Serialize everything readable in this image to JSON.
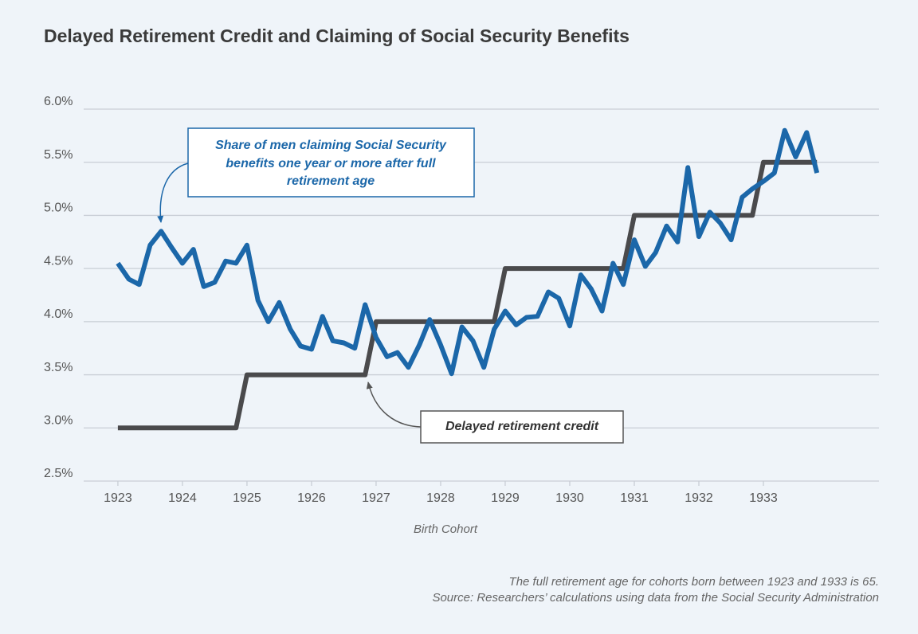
{
  "chart_data": {
    "type": "line",
    "title": "Delayed Retirement Credit and Claiming of Social Security Benefits",
    "x_label": "Birth Cohort",
    "xlim": [
      1922.47,
      1934.79
    ],
    "xticks": [
      1923,
      1924,
      1925,
      1926,
      1927,
      1928,
      1929,
      1930,
      1931,
      1932,
      1933
    ],
    "ylim": [
      2.5,
      6.0
    ],
    "yticks": [
      {
        "value": 2.5,
        "label": "2.5%"
      },
      {
        "value": 3.0,
        "label": "3.0%"
      },
      {
        "value": 3.5,
        "label": "3.5%"
      },
      {
        "value": 4.0,
        "label": "4.0%"
      },
      {
        "value": 4.5,
        "label": "4.5%"
      },
      {
        "value": 5.0,
        "label": "5.0%"
      },
      {
        "value": 5.5,
        "label": "5.5%"
      },
      {
        "value": 6.0,
        "label": "6.0%"
      }
    ],
    "grid": true,
    "series": [
      {
        "color": "#1b67a9",
        "x": [
          1923,
          1923.17,
          1923.33,
          1923.5,
          1923.67,
          1923.83,
          1924,
          1924.17,
          1924.33,
          1924.5,
          1924.67,
          1924.83,
          1925,
          1925.17,
          1925.33,
          1925.5,
          1925.67,
          1925.83,
          1926,
          1926.17,
          1926.33,
          1926.5,
          1926.67,
          1926.83,
          1927,
          1927.17,
          1927.33,
          1927.5,
          1927.67,
          1927.83,
          1928,
          1928.17,
          1928.33,
          1928.5,
          1928.67,
          1928.83,
          1929,
          1929.17,
          1929.33,
          1929.5,
          1929.67,
          1929.83,
          1930,
          1930.17,
          1930.33,
          1930.5,
          1930.67,
          1930.83,
          1931,
          1931.17,
          1931.33,
          1931.5,
          1931.67,
          1931.83,
          1932,
          1932.17,
          1932.33,
          1932.5,
          1932.67,
          1932.83,
          1933,
          1933.17,
          1933.33,
          1933.5,
          1933.67,
          1933.83
        ],
        "values": [
          4.55,
          4.4,
          4.35,
          4.72,
          4.85,
          4.7,
          4.55,
          4.68,
          4.33,
          4.37,
          4.57,
          4.55,
          4.72,
          4.2,
          4.0,
          4.18,
          3.93,
          3.77,
          3.74,
          4.05,
          3.82,
          3.8,
          3.75,
          4.16,
          3.85,
          3.67,
          3.71,
          3.57,
          3.78,
          4.02,
          3.78,
          3.51,
          3.95,
          3.82,
          3.57,
          3.93,
          4.1,
          3.97,
          4.04,
          4.05,
          4.28,
          4.22,
          3.96,
          4.44,
          4.31,
          4.1,
          4.55,
          4.35,
          4.77,
          4.52,
          4.65,
          4.9,
          4.75,
          5.45,
          4.8,
          5.03,
          4.93,
          4.77,
          5.17,
          5.25,
          5.32,
          5.4,
          5.8,
          5.55,
          5.78,
          5.4
        ]
      },
      {
        "color": "#4a4a4c",
        "x": [
          1923,
          1924.83,
          1925,
          1926.83,
          1927,
          1928.83,
          1929,
          1930.83,
          1931,
          1932.83,
          1933,
          1933.83
        ],
        "values": [
          3.0,
          3.0,
          3.5,
          3.5,
          4.0,
          4.0,
          4.5,
          4.5,
          5.0,
          5.0,
          5.5,
          5.5
        ]
      }
    ],
    "annotations": [
      {
        "lines": [
          "Share of men claiming Social Security",
          "benefits one year or more after full",
          "retirement age"
        ]
      },
      {
        "lines": [
          "Delayed retirement credit"
        ]
      }
    ],
    "notes": [
      "The full retirement age for cohorts born between 1923 and 1933 is 65.",
      "Source: Researchers’ calculations using data from the Social Security Administration"
    ]
  }
}
